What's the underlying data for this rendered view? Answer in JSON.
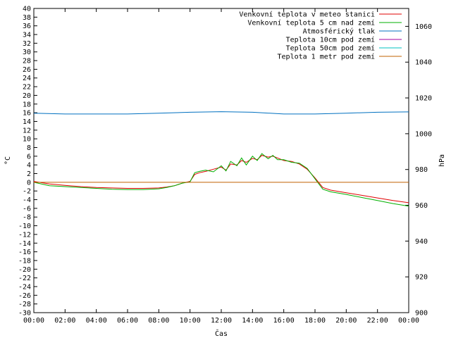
{
  "chart_data": {
    "type": "line",
    "xlabel": "Čas",
    "ylabel_left": "°C",
    "ylabel_right": "hPa",
    "ylim_left": [
      -30,
      40
    ],
    "ylim_right": [
      900,
      1070
    ],
    "xlim": [
      0,
      24
    ],
    "x_ticks": [
      "00:00",
      "02:00",
      "04:00",
      "06:00",
      "08:00",
      "10:00",
      "12:00",
      "14:00",
      "16:00",
      "18:00",
      "20:00",
      "22:00",
      "00:00"
    ],
    "y_ticks_left": [
      40,
      38,
      36,
      34,
      32,
      30,
      28,
      26,
      24,
      22,
      20,
      18,
      16,
      14,
      12,
      10,
      8,
      6,
      4,
      2,
      0,
      -2,
      -4,
      -6,
      -8,
      -10,
      -12,
      -14,
      -16,
      -18,
      -20,
      -22,
      -24,
      -26,
      -28,
      -30
    ],
    "y_ticks_right": [
      1060,
      1040,
      1020,
      1000,
      980,
      960,
      940,
      920,
      900
    ],
    "legend_position": "top-right",
    "grid": false,
    "series": [
      {
        "name": "Venkovní teplota v meteo stanici",
        "color": "#e00000",
        "axis": "left",
        "x": [
          0,
          1,
          2,
          3,
          4,
          5,
          6,
          7,
          8,
          8.5,
          9,
          9.5,
          10,
          10.3,
          10.6,
          11,
          11.5,
          12,
          12.3,
          12.6,
          13,
          13.3,
          13.6,
          14,
          14.3,
          14.6,
          15,
          15.3,
          15.6,
          16,
          16.5,
          17,
          17.5,
          18,
          18.5,
          19,
          20,
          21,
          22,
          23,
          24
        ],
        "y": [
          0.2,
          -0.4,
          -0.7,
          -1,
          -1.2,
          -1.3,
          -1.4,
          -1.4,
          -1.3,
          -1.1,
          -0.8,
          -0.2,
          0.2,
          1.8,
          2.2,
          2.5,
          3.0,
          3.5,
          2.8,
          4.2,
          4.0,
          5.0,
          4.6,
          5.5,
          5.2,
          6.2,
          5.8,
          6.0,
          5.6,
          5.0,
          4.8,
          4.2,
          3.0,
          1.0,
          -1.2,
          -1.8,
          -2.4,
          -3.0,
          -3.6,
          -4.2,
          -4.7
        ]
      },
      {
        "name": "Venkovní teplota 5 cm nad zemí",
        "color": "#00b000",
        "axis": "left",
        "x": [
          0,
          1,
          2,
          3,
          4,
          5,
          6,
          7,
          8,
          8.5,
          9,
          9.5,
          10,
          10.3,
          10.6,
          11,
          11.5,
          12,
          12.3,
          12.6,
          13,
          13.3,
          13.6,
          14,
          14.3,
          14.6,
          15,
          15.3,
          15.6,
          16,
          16.5,
          17,
          17.5,
          18,
          18.5,
          19,
          20,
          21,
          22,
          23,
          24
        ],
        "y": [
          0,
          -0.8,
          -1.0,
          -1.2,
          -1.4,
          -1.6,
          -1.7,
          -1.7,
          -1.5,
          -1.2,
          -0.8,
          -0.2,
          0.1,
          2.2,
          2.5,
          2.8,
          2.4,
          3.8,
          2.6,
          4.8,
          3.8,
          5.6,
          4.0,
          6.0,
          5.0,
          6.6,
          5.4,
          6.2,
          5.2,
          5.2,
          4.6,
          4.4,
          3.2,
          0.8,
          -1.6,
          -2.2,
          -2.8,
          -3.5,
          -4.2,
          -4.9,
          -5.5
        ]
      },
      {
        "name": "Atmosférický tlak",
        "color": "#0070c0",
        "axis": "right",
        "x": [
          0,
          2,
          4,
          6,
          8,
          10,
          12,
          14,
          16,
          18,
          20,
          22,
          24
        ],
        "y": [
          1011.5,
          1011,
          1011,
          1011,
          1011.5,
          1012,
          1012.3,
          1012,
          1011,
          1011,
          1011.5,
          1012,
          1012.2
        ]
      },
      {
        "name": "Teplota 10cm pod zemí",
        "color": "#a000a0",
        "axis": "left",
        "x": [],
        "y": []
      },
      {
        "name": "Teplota 50cm pod zemí",
        "color": "#00c0c0",
        "axis": "left",
        "x": [],
        "y": []
      },
      {
        "name": "Teplota 1 metr pod zemí",
        "color": "#c06000",
        "axis": "left",
        "x": [
          0,
          24
        ],
        "y": [
          0,
          0
        ]
      }
    ]
  }
}
